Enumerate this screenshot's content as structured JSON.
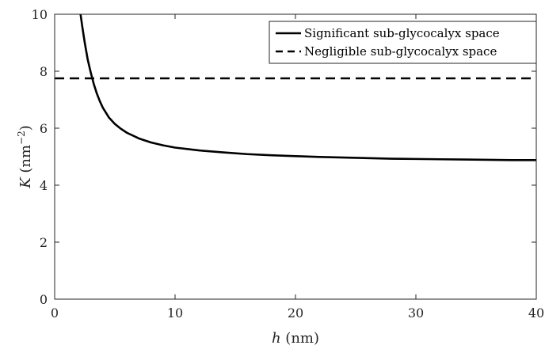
{
  "chart_data": {
    "type": "line",
    "title": "",
    "xlabel": {
      "symbol": "h",
      "unit": " (nm)"
    },
    "ylabel": {
      "symbol": "K",
      "unit_base": " (nm",
      "unit_exp": "−2",
      "unit_close": ")"
    },
    "xlim": [
      0,
      40
    ],
    "ylim": [
      0,
      10
    ],
    "xticks": [
      0,
      10,
      20,
      30,
      40
    ],
    "yticks": [
      0,
      2,
      4,
      6,
      8,
      10
    ],
    "grid": false,
    "legend_position": "top-right",
    "series": [
      {
        "name": "Significant sub-glycocalyx space",
        "style": "solid",
        "color": "#000000",
        "x": [
          2.15,
          2.3,
          2.5,
          2.75,
          3.0,
          3.25,
          3.5,
          3.75,
          4.0,
          4.5,
          5.0,
          5.5,
          6.0,
          7.0,
          8.0,
          9.0,
          10.0,
          12.0,
          14.0,
          16.0,
          18.0,
          20.0,
          22.0,
          24.0,
          26.0,
          28.0,
          30.0,
          32.0,
          34.0,
          36.0,
          38.0,
          40.0
        ],
        "y": [
          10.0,
          9.55,
          9.0,
          8.4,
          7.95,
          7.55,
          7.22,
          6.95,
          6.72,
          6.38,
          6.15,
          5.98,
          5.84,
          5.64,
          5.5,
          5.4,
          5.32,
          5.22,
          5.15,
          5.09,
          5.05,
          5.02,
          4.99,
          4.97,
          4.95,
          4.93,
          4.92,
          4.91,
          4.9,
          4.89,
          4.88,
          4.88
        ]
      },
      {
        "name": "Negligible sub-glycocalyx space",
        "style": "dashed",
        "color": "#000000",
        "x": [
          0,
          40
        ],
        "y": [
          7.75,
          7.75
        ]
      }
    ]
  }
}
